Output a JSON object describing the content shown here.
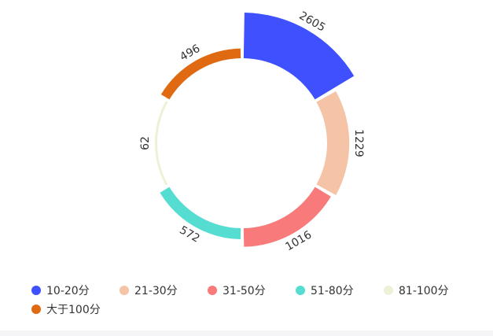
{
  "chart_data": {
    "type": "pie",
    "variant": "nightingale-rose-ring",
    "legend_position": "bottom-left",
    "series": [
      {
        "name": "10-20分",
        "value": 2605,
        "color": "#3f51ff"
      },
      {
        "name": "21-30分",
        "value": 1229,
        "color": "#f5c3a6"
      },
      {
        "name": "31-50分",
        "value": 1016,
        "color": "#f87a7a"
      },
      {
        "name": "51-80分",
        "value": 572,
        "color": "#54ddd0"
      },
      {
        "name": "81-100分",
        "value": 62,
        "color": "#edf2d6"
      },
      {
        "name": "大于100分",
        "value": 496,
        "color": "#e06a12"
      }
    ]
  }
}
